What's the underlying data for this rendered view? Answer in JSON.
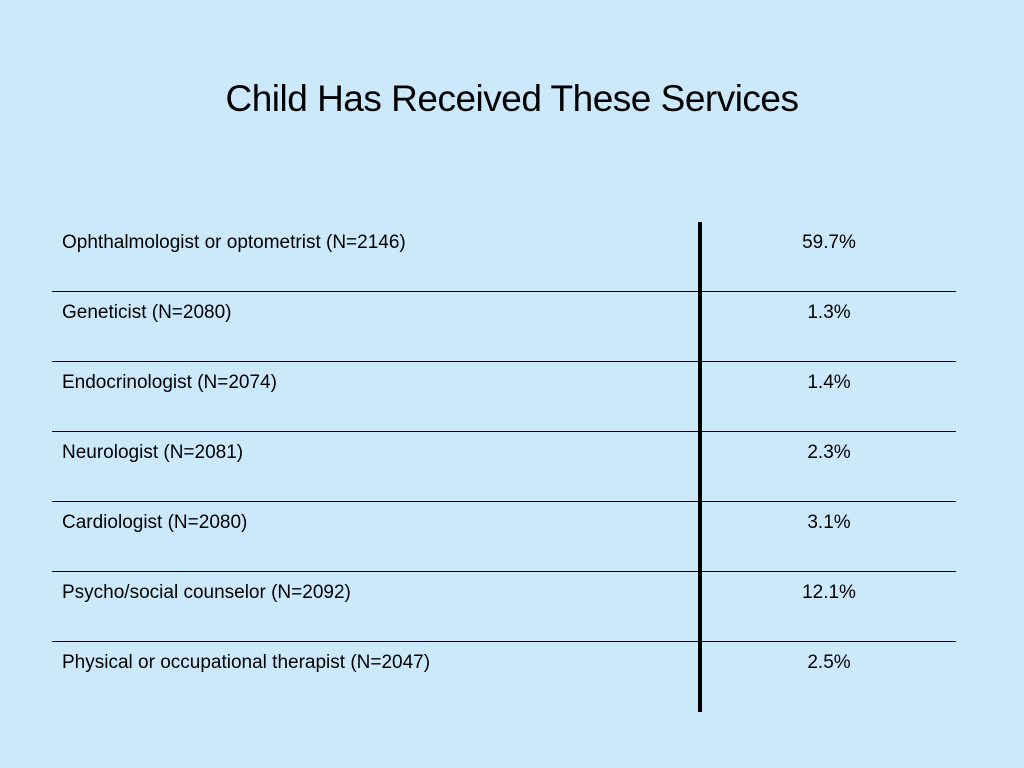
{
  "slide": {
    "title": "Child Has Received These Services"
  },
  "table": {
    "rows": [
      {
        "label": "Ophthalmologist or optometrist (N=2146)",
        "value": "59.7%"
      },
      {
        "label": "Geneticist (N=2080)",
        "value": "1.3%"
      },
      {
        "label": "Endocrinologist (N=2074)",
        "value": "1.4%"
      },
      {
        "label": "Neurologist (N=2081)",
        "value": "2.3%"
      },
      {
        "label": "Cardiologist (N=2080)",
        "value": "3.1%"
      },
      {
        "label": "Psycho/social counselor (N=2092)",
        "value": "12.1%"
      },
      {
        "label": "Physical or occupational therapist (N=2047)",
        "value": "2.5%"
      }
    ]
  },
  "colors": {
    "background": "#cce9fc",
    "text": "#000000",
    "rules": "#000000"
  }
}
